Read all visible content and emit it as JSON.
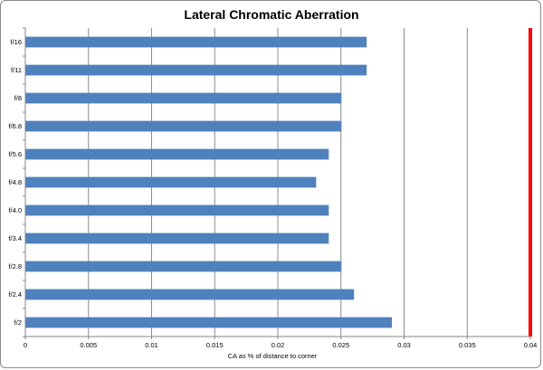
{
  "chart_data": {
    "type": "bar",
    "orientation": "horizontal",
    "title": "Lateral Chromatic Aberration",
    "xlabel": "CA as % of distance  to corner",
    "ylabel": "",
    "categories": [
      "f/16",
      "f/11",
      "f/8",
      "f/6.8",
      "f/5.6",
      "f/4.8",
      "f/4.0",
      "f/3.4",
      "f/2.8",
      "f/2.4",
      "f/2"
    ],
    "values": [
      0.027,
      0.027,
      0.025,
      0.025,
      0.024,
      0.023,
      0.024,
      0.024,
      0.025,
      0.026,
      0.029
    ],
    "xlim": [
      0,
      0.04
    ],
    "xticks": [
      0,
      0.005,
      0.01,
      0.015,
      0.02,
      0.025,
      0.03,
      0.035,
      0.04
    ],
    "xtick_labels": [
      "0",
      "0.005",
      "0.01",
      "0.015",
      "0.02",
      "0.025",
      "0.03",
      "0.035",
      "0.04"
    ],
    "grid": "vertical",
    "legend": "none",
    "reference_line": {
      "x": 0.04,
      "color": "#ff0000"
    },
    "colors": {
      "bar": "#4f81bd",
      "grid": "#8c8c8c",
      "axis": "#868686"
    }
  }
}
